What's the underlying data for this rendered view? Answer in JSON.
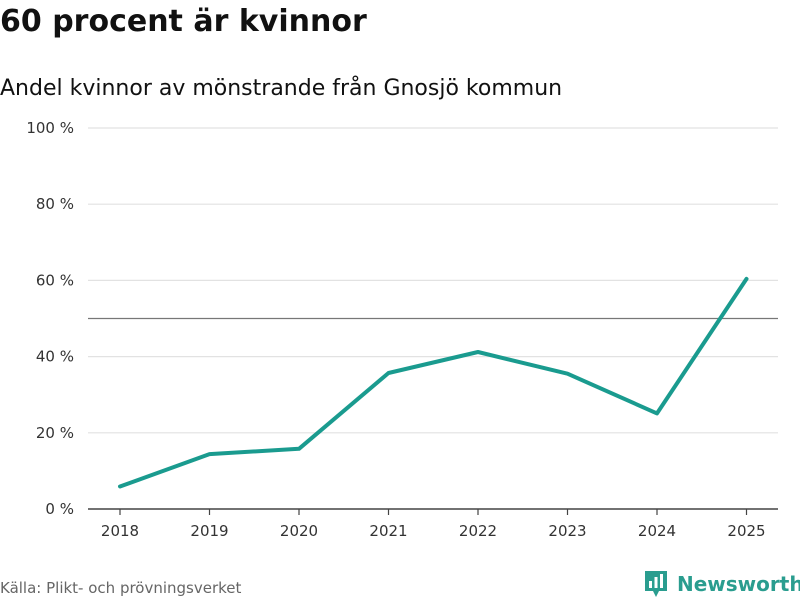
{
  "chart_data": {
    "type": "line",
    "title": "60 procent är kvinnor",
    "subtitle": "Andel kvinnor av mönstrande från Gnosjö kommun",
    "x": [
      "2018",
      "2019",
      "2020",
      "2021",
      "2022",
      "2023",
      "2024",
      "2025"
    ],
    "series": [
      {
        "values": [
          5.9,
          14.4,
          15.8,
          35.7,
          41.2,
          35.5,
          25.1,
          60.4
        ]
      }
    ],
    "y_ticks": [
      {
        "value": 0,
        "label": "0 %"
      },
      {
        "value": 20,
        "label": "20 %"
      },
      {
        "value": 40,
        "label": "40 %"
      },
      {
        "value": 60,
        "label": "60 %"
      },
      {
        "value": 80,
        "label": "80 %"
      },
      {
        "value": 100,
        "label": "100 %"
      }
    ],
    "ylim": [
      0,
      100
    ],
    "reference_line": 50,
    "grid": true,
    "legend": "none",
    "line_color": "#1a9b8f",
    "reference_color": "#777777",
    "grid_color": "#e2e2e2"
  },
  "footer": {
    "source": "Källa: Plikt- och prövningsverket",
    "brand": "Newsworthy",
    "brand_color": "#2a9d8f",
    "brand_icon": "bar-chart-speech-bubble-icon"
  }
}
